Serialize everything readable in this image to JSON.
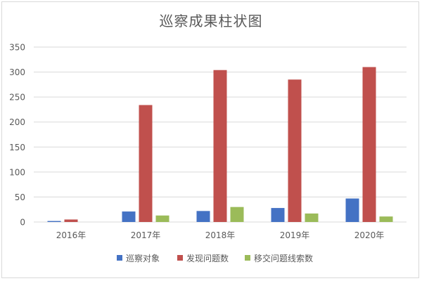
{
  "chart_data": {
    "type": "bar",
    "title": "巡察成果柱状图",
    "xlabel": "",
    "ylabel": "",
    "categories": [
      "2016年",
      "2017年",
      "2018年",
      "2019年",
      "2020年"
    ],
    "ylim": [
      0,
      350
    ],
    "yticks": [
      0,
      50,
      100,
      150,
      200,
      250,
      300,
      350
    ],
    "grid": true,
    "legend_position": "bottom",
    "series": [
      {
        "name": "巡察对象",
        "color": "#4472c4",
        "values": [
          2,
          21,
          22,
          28,
          47
        ]
      },
      {
        "name": "发现问题数",
        "color": "#c0504d",
        "values": [
          5,
          234,
          304,
          285,
          310
        ]
      },
      {
        "name": "移交问题线索数",
        "color": "#9bbb59",
        "values": [
          0,
          13,
          30,
          17,
          11
        ]
      }
    ]
  }
}
